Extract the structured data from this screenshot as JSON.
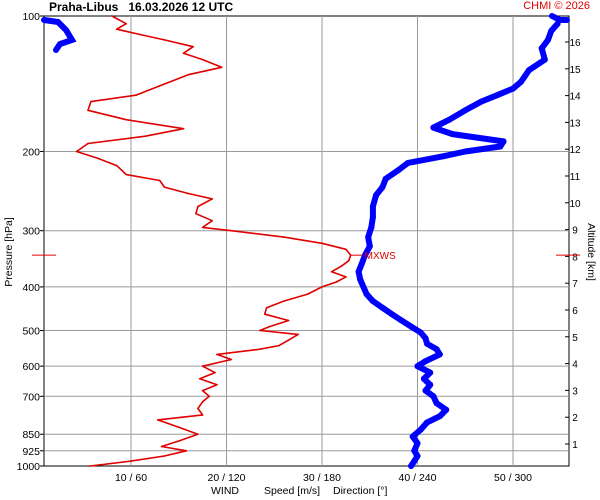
{
  "header": {
    "station": "Praha-Libus",
    "datetime": "16.03.2026 12 UTC",
    "copyright": "CHMI © 2026"
  },
  "colors": {
    "speed": "#e00000",
    "direction": "#0000ff",
    "grid": "#9a9a9a",
    "altitude_axis": "#0000cc"
  },
  "chart_data": {
    "type": "line",
    "left_axis": {
      "label": "Pressure [hPa]",
      "ticks": [
        100,
        200,
        300,
        400,
        500,
        600,
        700,
        850,
        925,
        1000
      ],
      "scale": "log",
      "range": [
        100,
        1000
      ]
    },
    "right_axis": {
      "label": "Altitude [km]",
      "ticks": [
        1,
        2,
        3,
        4,
        5,
        6,
        7,
        8,
        9,
        10,
        11,
        12,
        13,
        14,
        15,
        16
      ]
    },
    "x_axis": {
      "title": "WIND",
      "speed_label": "Speed [m/s]",
      "direction_label": "Direction [°]",
      "tick_labels": [
        "10 / 60",
        "20 / 120",
        "30 / 180",
        "40 / 240",
        "50 / 300"
      ],
      "speed_range": [
        0,
        55
      ],
      "direction_range": [
        0,
        330
      ]
    },
    "annotations": [
      {
        "text": "MXWS",
        "pressure": 340,
        "speed": 33
      }
    ],
    "series": [
      {
        "name": "Speed [m/s]",
        "unit": "m/s",
        "points": [
          {
            "p": 1000,
            "v": 5.7
          },
          {
            "p": 990,
            "v": 7.5
          },
          {
            "p": 975,
            "v": 10.0
          },
          {
            "p": 950,
            "v": 13.5
          },
          {
            "p": 925,
            "v": 15.8
          },
          {
            "p": 905,
            "v": 13.2
          },
          {
            "p": 880,
            "v": 15.0
          },
          {
            "p": 850,
            "v": 17.0
          },
          {
            "p": 820,
            "v": 15.0
          },
          {
            "p": 790,
            "v": 12.8
          },
          {
            "p": 770,
            "v": 17.5
          },
          {
            "p": 745,
            "v": 17.0
          },
          {
            "p": 720,
            "v": 17.5
          },
          {
            "p": 700,
            "v": 18.2
          },
          {
            "p": 680,
            "v": 17.5
          },
          {
            "p": 660,
            "v": 19.0
          },
          {
            "p": 640,
            "v": 17.2
          },
          {
            "p": 620,
            "v": 18.8
          },
          {
            "p": 600,
            "v": 17.5
          },
          {
            "p": 580,
            "v": 20.5
          },
          {
            "p": 565,
            "v": 19.0
          },
          {
            "p": 550,
            "v": 23.5
          },
          {
            "p": 540,
            "v": 25.5
          },
          {
            "p": 525,
            "v": 26.5
          },
          {
            "p": 510,
            "v": 27.5
          },
          {
            "p": 500,
            "v": 23.5
          },
          {
            "p": 490,
            "v": 24.5
          },
          {
            "p": 475,
            "v": 26.5
          },
          {
            "p": 460,
            "v": 24.0
          },
          {
            "p": 445,
            "v": 24.2
          },
          {
            "p": 430,
            "v": 26.0
          },
          {
            "p": 415,
            "v": 28.5
          },
          {
            "p": 400,
            "v": 30.0
          },
          {
            "p": 390,
            "v": 31.5
          },
          {
            "p": 380,
            "v": 32.5
          },
          {
            "p": 370,
            "v": 31.0
          },
          {
            "p": 360,
            "v": 32.0
          },
          {
            "p": 350,
            "v": 32.8
          },
          {
            "p": 340,
            "v": 33.0
          },
          {
            "p": 330,
            "v": 32.5
          },
          {
            "p": 320,
            "v": 30.0
          },
          {
            "p": 310,
            "v": 26.0
          },
          {
            "p": 300,
            "v": 20.5
          },
          {
            "p": 295,
            "v": 17.5
          },
          {
            "p": 285,
            "v": 18.5
          },
          {
            "p": 275,
            "v": 16.8
          },
          {
            "p": 265,
            "v": 17.0
          },
          {
            "p": 255,
            "v": 18.5
          },
          {
            "p": 248,
            "v": 16.0
          },
          {
            "p": 240,
            "v": 13.5
          },
          {
            "p": 232,
            "v": 13.0
          },
          {
            "p": 225,
            "v": 9.5
          },
          {
            "p": 215,
            "v": 8.5
          },
          {
            "p": 207,
            "v": 6.5
          },
          {
            "p": 200,
            "v": 4.3
          },
          {
            "p": 192,
            "v": 5.5
          },
          {
            "p": 185,
            "v": 11.5
          },
          {
            "p": 178,
            "v": 15.5
          },
          {
            "p": 170,
            "v": 9.5
          },
          {
            "p": 162,
            "v": 5.5
          },
          {
            "p": 155,
            "v": 5.8
          },
          {
            "p": 150,
            "v": 10.5
          },
          {
            "p": 143,
            "v": 13.0
          },
          {
            "p": 135,
            "v": 16.0
          },
          {
            "p": 130,
            "v": 19.5
          },
          {
            "p": 125,
            "v": 17.5
          },
          {
            "p": 121,
            "v": 15.5
          },
          {
            "p": 117,
            "v": 16.5
          },
          {
            "p": 113,
            "v": 13.5
          },
          {
            "p": 110,
            "v": 11.0
          },
          {
            "p": 107,
            "v": 8.5
          },
          {
            "p": 104,
            "v": 9.5
          },
          {
            "p": 100,
            "v": 8.0
          }
        ]
      },
      {
        "name": "Direction [°]",
        "unit": "deg",
        "points": [
          {
            "p": 1000,
            "v": 236
          },
          {
            "p": 975,
            "v": 238
          },
          {
            "p": 950,
            "v": 240
          },
          {
            "p": 925,
            "v": 238
          },
          {
            "p": 890,
            "v": 240
          },
          {
            "p": 860,
            "v": 237
          },
          {
            "p": 830,
            "v": 242
          },
          {
            "p": 800,
            "v": 246
          },
          {
            "p": 775,
            "v": 254
          },
          {
            "p": 750,
            "v": 258
          },
          {
            "p": 725,
            "v": 252
          },
          {
            "p": 700,
            "v": 250
          },
          {
            "p": 680,
            "v": 245
          },
          {
            "p": 660,
            "v": 248
          },
          {
            "p": 640,
            "v": 244
          },
          {
            "p": 620,
            "v": 248
          },
          {
            "p": 600,
            "v": 240
          },
          {
            "p": 585,
            "v": 245
          },
          {
            "p": 565,
            "v": 254
          },
          {
            "p": 550,
            "v": 252
          },
          {
            "p": 535,
            "v": 246
          },
          {
            "p": 520,
            "v": 245
          },
          {
            "p": 505,
            "v": 242
          },
          {
            "p": 490,
            "v": 236
          },
          {
            "p": 475,
            "v": 230
          },
          {
            "p": 460,
            "v": 224
          },
          {
            "p": 445,
            "v": 218
          },
          {
            "p": 430,
            "v": 212
          },
          {
            "p": 415,
            "v": 208
          },
          {
            "p": 400,
            "v": 206
          },
          {
            "p": 385,
            "v": 204
          },
          {
            "p": 370,
            "v": 203
          },
          {
            "p": 355,
            "v": 205
          },
          {
            "p": 340,
            "v": 207
          },
          {
            "p": 325,
            "v": 210
          },
          {
            "p": 310,
            "v": 209
          },
          {
            "p": 295,
            "v": 211
          },
          {
            "p": 280,
            "v": 212
          },
          {
            "p": 265,
            "v": 212
          },
          {
            "p": 250,
            "v": 214
          },
          {
            "p": 240,
            "v": 218
          },
          {
            "p": 230,
            "v": 220
          },
          {
            "p": 220,
            "v": 228
          },
          {
            "p": 212,
            "v": 234
          },
          {
            "p": 205,
            "v": 256
          },
          {
            "p": 200,
            "v": 270
          },
          {
            "p": 195,
            "v": 292
          },
          {
            "p": 190,
            "v": 294
          },
          {
            "p": 183,
            "v": 262
          },
          {
            "p": 177,
            "v": 250
          },
          {
            "p": 170,
            "v": 260
          },
          {
            "p": 162,
            "v": 270
          },
          {
            "p": 155,
            "v": 280
          },
          {
            "p": 150,
            "v": 290
          },
          {
            "p": 145,
            "v": 300
          },
          {
            "p": 140,
            "v": 305
          },
          {
            "p": 132,
            "v": 310
          },
          {
            "p": 125,
            "v": 320
          },
          {
            "p": 118,
            "v": 318
          },
          {
            "p": 113,
            "v": 322
          },
          {
            "p": 108,
            "v": 324
          },
          {
            "p": 104,
            "v": 328
          }
        ]
      }
    ]
  }
}
